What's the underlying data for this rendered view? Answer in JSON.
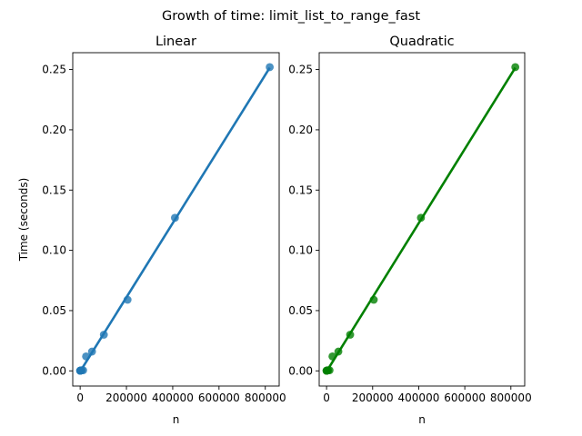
{
  "figure_title": "Growth of time: limit_list_to_range_fast",
  "chart_data": [
    {
      "type": "scatter",
      "title": "Linear",
      "xlabel": "n",
      "ylabel": "Time (seconds)",
      "xlim": [
        -32000,
        860000
      ],
      "ylim": [
        -0.0126,
        0.264
      ],
      "xticks": [
        0,
        200000,
        400000,
        600000,
        800000
      ],
      "xtick_labels": [
        "0",
        "200000",
        "400000",
        "600000",
        "800000"
      ],
      "yticks": [
        0.0,
        0.05,
        0.1,
        0.15,
        0.2,
        0.25
      ],
      "ytick_labels": [
        "0.00",
        "0.05",
        "0.10",
        "0.15",
        "0.20",
        "0.25"
      ],
      "grid": false,
      "color": "#1f77b4",
      "fit": "linear",
      "fit_line": {
        "x": [
          0,
          819200
        ],
        "y": [
          -0.0005,
          0.2515
        ]
      },
      "points": {
        "x": [
          100,
          200,
          400,
          800,
          1600,
          3200,
          6400,
          12800,
          25600,
          51200,
          102400,
          204800,
          409600,
          819200
        ],
        "y": [
          0.0001,
          0.0001,
          0.0002,
          0.0002,
          0.0003,
          0.0004,
          0.0005,
          0.0005,
          0.012,
          0.016,
          0.03,
          0.059,
          0.127,
          0.252
        ]
      }
    },
    {
      "type": "scatter",
      "title": "Quadratic",
      "xlabel": "n",
      "ylabel": "",
      "xlim": [
        -32000,
        860000
      ],
      "ylim": [
        -0.0126,
        0.264
      ],
      "xticks": [
        0,
        200000,
        400000,
        600000,
        800000
      ],
      "xtick_labels": [
        "0",
        "200000",
        "400000",
        "600000",
        "800000"
      ],
      "yticks": [
        0.0,
        0.05,
        0.1,
        0.15,
        0.2,
        0.25
      ],
      "ytick_labels": [
        "0.00",
        "0.05",
        "0.10",
        "0.15",
        "0.20",
        "0.25"
      ],
      "grid": false,
      "color": "#008000",
      "fit": "quadratic",
      "fit_line": {
        "x": [
          0,
          819200
        ],
        "y": [
          -0.0005,
          0.2515
        ]
      },
      "points": {
        "x": [
          100,
          200,
          400,
          800,
          1600,
          3200,
          6400,
          12800,
          25600,
          51200,
          102400,
          204800,
          409600,
          819200
        ],
        "y": [
          0.0001,
          0.0001,
          0.0002,
          0.0002,
          0.0003,
          0.0004,
          0.0005,
          0.0005,
          0.012,
          0.016,
          0.03,
          0.059,
          0.127,
          0.252
        ]
      }
    }
  ]
}
